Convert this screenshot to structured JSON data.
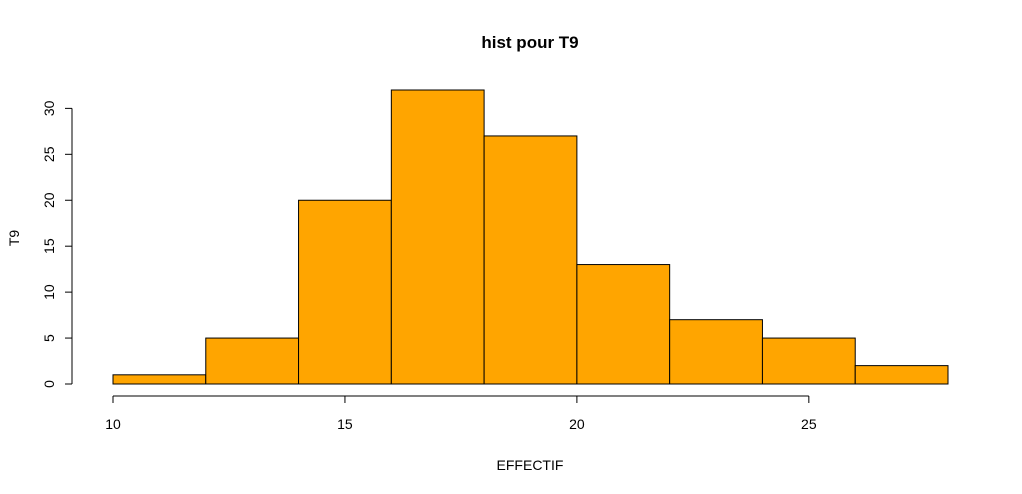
{
  "chart_data": {
    "type": "bar",
    "subtype": "histogram",
    "title": "hist pour T9",
    "xlabel": "EFFECTIF",
    "ylabel": "T9",
    "bins": [
      {
        "from": 10,
        "to": 12,
        "count": 1
      },
      {
        "from": 12,
        "to": 14,
        "count": 5
      },
      {
        "from": 14,
        "to": 16,
        "count": 20
      },
      {
        "from": 16,
        "to": 18,
        "count": 32
      },
      {
        "from": 18,
        "to": 20,
        "count": 27
      },
      {
        "from": 20,
        "to": 22,
        "count": 13
      },
      {
        "from": 22,
        "to": 24,
        "count": 7
      },
      {
        "from": 24,
        "to": 26,
        "count": 5
      },
      {
        "from": 26,
        "to": 28,
        "count": 2
      }
    ],
    "xlim": [
      10,
      28
    ],
    "ylim": [
      0,
      32
    ],
    "xticks": [
      10,
      15,
      20,
      25
    ],
    "yticks": [
      0,
      5,
      10,
      15,
      20,
      25,
      30
    ],
    "bar_color": "#FFA500",
    "bar_border_color": "#000000",
    "grid": false,
    "legend": "none"
  }
}
